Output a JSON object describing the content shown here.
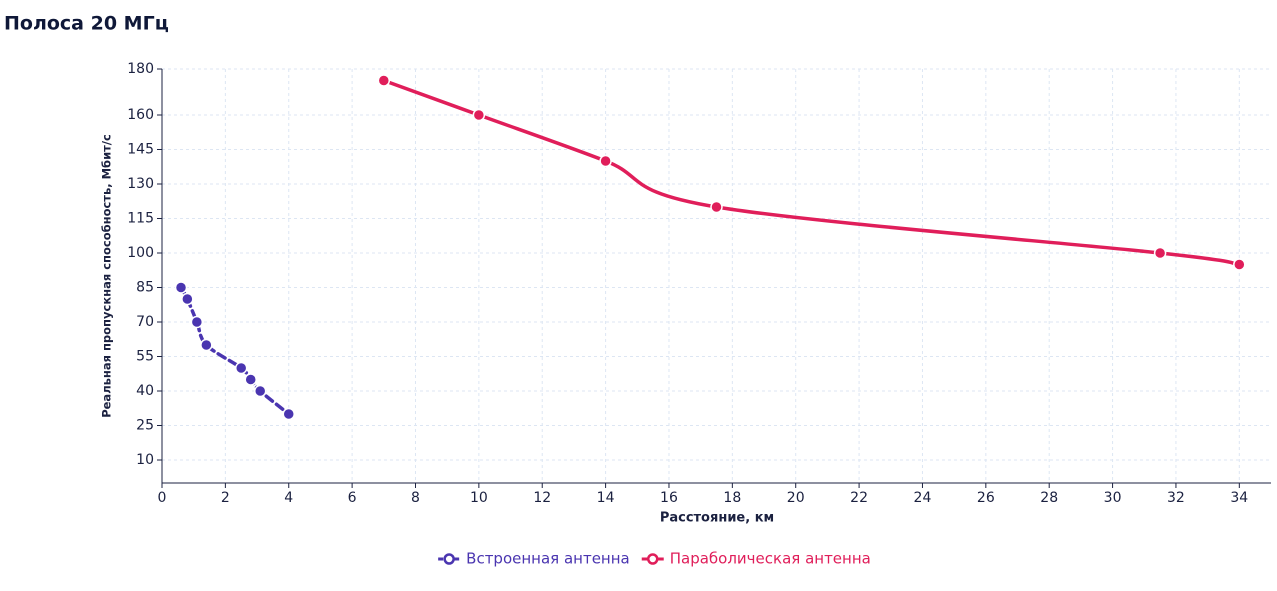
{
  "chart_data": {
    "type": "line",
    "title": "Полоса 20 МГц",
    "x_label": "Расстояние, км",
    "y_label": "Реальная пропускная способность, Мбит/с",
    "xlim": [
      0,
      35
    ],
    "xticks": [
      0,
      2,
      4,
      6,
      8,
      10,
      12,
      14,
      16,
      18,
      20,
      22,
      24,
      26,
      28,
      30,
      32,
      34
    ],
    "ylim": [
      0,
      180
    ],
    "yticks": [
      10,
      25,
      40,
      55,
      70,
      85,
      100,
      115,
      130,
      145,
      160,
      180
    ],
    "grid": true,
    "legend": "bottom",
    "series": [
      {
        "name": "Встроенная антенна",
        "color": "#4a35b0",
        "dashed": true,
        "x": [
          0.6,
          0.8,
          1.1,
          1.4,
          2.5,
          2.8,
          3.1,
          4
        ],
        "values": [
          85,
          80,
          70,
          60,
          50,
          45,
          40,
          30
        ]
      },
      {
        "name": "Параболическая антенна",
        "color": "#e01e5a",
        "dashed": false,
        "x": [
          7,
          10,
          14,
          17.5,
          31.5,
          34
        ],
        "values": [
          175,
          160,
          140,
          120,
          100,
          95
        ]
      }
    ]
  }
}
